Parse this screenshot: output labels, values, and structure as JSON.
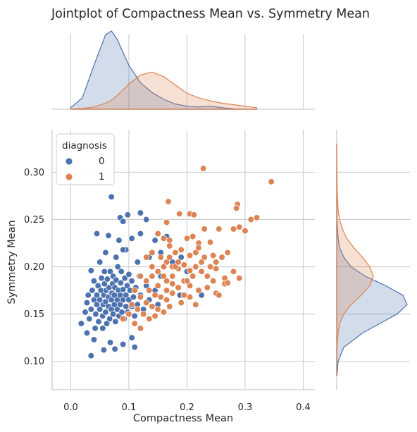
{
  "chart_data": {
    "type": "scatter",
    "title": "Jointplot of Compactness Mean vs. Symmetry Mean",
    "xlabel": "Compactness Mean",
    "ylabel": "Symmetry Mean",
    "xlim": [
      -0.032,
      0.42
    ],
    "ylim": [
      0.07,
      0.345
    ],
    "xticks": [
      0.0,
      0.1,
      0.2,
      0.3,
      0.4
    ],
    "xtick_labels": [
      "0.0",
      "0.1",
      "0.2",
      "0.3",
      "0.4"
    ],
    "yticks": [
      0.1,
      0.15,
      0.2,
      0.25,
      0.3
    ],
    "ytick_labels": [
      "0.10",
      "0.15",
      "0.20",
      "0.25",
      "0.30"
    ],
    "grid": true,
    "legend": {
      "title": "diagnosis",
      "placement": "top-left"
    },
    "colors": {
      "0": "#4c72b0",
      "1": "#dd8452"
    },
    "series": [
      {
        "name": "0",
        "color": "#4c72b0",
        "points": [
          [
            0.035,
            0.106
          ],
          [
            0.04,
            0.123
          ],
          [
            0.057,
            0.112
          ],
          [
            0.068,
            0.12
          ],
          [
            0.076,
            0.113
          ],
          [
            0.09,
            0.118
          ],
          [
            0.105,
            0.125
          ],
          [
            0.11,
            0.115
          ],
          [
            0.018,
            0.14
          ],
          [
            0.025,
            0.152
          ],
          [
            0.028,
            0.162
          ],
          [
            0.03,
            0.17
          ],
          [
            0.032,
            0.145
          ],
          [
            0.035,
            0.155
          ],
          [
            0.037,
            0.175
          ],
          [
            0.04,
            0.165
          ],
          [
            0.04,
            0.185
          ],
          [
            0.043,
            0.15
          ],
          [
            0.045,
            0.16
          ],
          [
            0.045,
            0.17
          ],
          [
            0.047,
            0.18
          ],
          [
            0.048,
            0.142
          ],
          [
            0.05,
            0.155
          ],
          [
            0.05,
            0.165
          ],
          [
            0.052,
            0.175
          ],
          [
            0.053,
            0.188
          ],
          [
            0.055,
            0.135
          ],
          [
            0.055,
            0.148
          ],
          [
            0.056,
            0.16
          ],
          [
            0.057,
            0.17
          ],
          [
            0.058,
            0.182
          ],
          [
            0.058,
            0.195
          ],
          [
            0.06,
            0.152
          ],
          [
            0.06,
            0.163
          ],
          [
            0.061,
            0.175
          ],
          [
            0.062,
            0.14
          ],
          [
            0.063,
            0.187
          ],
          [
            0.065,
            0.158
          ],
          [
            0.065,
            0.168
          ],
          [
            0.066,
            0.178
          ],
          [
            0.067,
            0.145
          ],
          [
            0.068,
            0.195
          ],
          [
            0.07,
            0.155
          ],
          [
            0.07,
            0.165
          ],
          [
            0.071,
            0.172
          ],
          [
            0.072,
            0.182
          ],
          [
            0.073,
            0.15
          ],
          [
            0.073,
            0.19
          ],
          [
            0.075,
            0.16
          ],
          [
            0.075,
            0.17
          ],
          [
            0.076,
            0.178
          ],
          [
            0.077,
            0.142
          ],
          [
            0.078,
            0.186
          ],
          [
            0.08,
            0.155
          ],
          [
            0.08,
            0.165
          ],
          [
            0.081,
            0.2
          ],
          [
            0.082,
            0.175
          ],
          [
            0.083,
            0.148
          ],
          [
            0.085,
            0.16
          ],
          [
            0.085,
            0.17
          ],
          [
            0.086,
            0.183
          ],
          [
            0.087,
            0.195
          ],
          [
            0.088,
            0.152
          ],
          [
            0.09,
            0.165
          ],
          [
            0.09,
            0.176
          ],
          [
            0.092,
            0.145
          ],
          [
            0.093,
            0.188
          ],
          [
            0.095,
            0.158
          ],
          [
            0.095,
            0.17
          ],
          [
            0.097,
            0.18
          ],
          [
            0.098,
            0.152
          ],
          [
            0.1,
            0.165
          ],
          [
            0.1,
            0.192
          ],
          [
            0.102,
            0.175
          ],
          [
            0.105,
            0.158
          ],
          [
            0.105,
            0.185
          ],
          [
            0.108,
            0.168
          ],
          [
            0.11,
            0.148
          ],
          [
            0.112,
            0.178
          ],
          [
            0.115,
            0.16
          ],
          [
            0.118,
            0.19
          ],
          [
            0.12,
            0.17
          ],
          [
            0.125,
            0.155
          ],
          [
            0.13,
            0.18
          ],
          [
            0.135,
            0.165
          ],
          [
            0.14,
            0.2
          ],
          [
            0.145,
            0.175
          ],
          [
            0.15,
            0.16
          ],
          [
            0.155,
            0.19
          ],
          [
            0.085,
            0.252
          ],
          [
            0.09,
            0.248
          ],
          [
            0.098,
            0.255
          ],
          [
            0.12,
            0.257
          ],
          [
            0.13,
            0.25
          ],
          [
            0.045,
            0.235
          ],
          [
            0.065,
            0.233
          ],
          [
            0.083,
            0.228
          ],
          [
            0.105,
            0.23
          ],
          [
            0.12,
            0.235
          ],
          [
            0.145,
            0.228
          ],
          [
            0.165,
            0.232
          ],
          [
            0.06,
            0.215
          ],
          [
            0.078,
            0.21
          ],
          [
            0.095,
            0.218
          ],
          [
            0.115,
            0.205
          ],
          [
            0.135,
            0.21
          ],
          [
            0.155,
            0.215
          ],
          [
            0.175,
            0.205
          ],
          [
            0.07,
            0.274
          ],
          [
            0.09,
            0.218
          ],
          [
            0.188,
            0.17
          ],
          [
            0.225,
            0.17
          ],
          [
            0.2,
            0.195
          ],
          [
            0.19,
            0.21
          ],
          [
            0.035,
            0.196
          ],
          [
            0.05,
            0.205
          ],
          [
            0.028,
            0.13
          ],
          [
            0.042,
            0.135
          ]
        ]
      },
      {
        "name": "1",
        "color": "#dd8452",
        "points": [
          [
            0.228,
            0.304
          ],
          [
            0.345,
            0.29
          ],
          [
            0.287,
            0.266
          ],
          [
            0.285,
            0.262
          ],
          [
            0.168,
            0.269
          ],
          [
            0.165,
            0.247
          ],
          [
            0.187,
            0.256
          ],
          [
            0.205,
            0.256
          ],
          [
            0.212,
            0.255
          ],
          [
            0.32,
            0.252
          ],
          [
            0.31,
            0.25
          ],
          [
            0.23,
            0.24
          ],
          [
            0.255,
            0.24
          ],
          [
            0.28,
            0.24
          ],
          [
            0.29,
            0.242
          ],
          [
            0.3,
            0.238
          ],
          [
            0.15,
            0.235
          ],
          [
            0.16,
            0.23
          ],
          [
            0.17,
            0.228
          ],
          [
            0.2,
            0.23
          ],
          [
            0.21,
            0.232
          ],
          [
            0.22,
            0.225
          ],
          [
            0.24,
            0.226
          ],
          [
            0.17,
            0.222
          ],
          [
            0.18,
            0.215
          ],
          [
            0.19,
            0.218
          ],
          [
            0.205,
            0.212
          ],
          [
            0.215,
            0.215
          ],
          [
            0.23,
            0.21
          ],
          [
            0.245,
            0.212
          ],
          [
            0.26,
            0.21
          ],
          [
            0.27,
            0.215
          ],
          [
            0.155,
            0.21
          ],
          [
            0.165,
            0.205
          ],
          [
            0.175,
            0.2
          ],
          [
            0.185,
            0.198
          ],
          [
            0.195,
            0.202
          ],
          [
            0.205,
            0.196
          ],
          [
            0.215,
            0.2
          ],
          [
            0.225,
            0.195
          ],
          [
            0.235,
            0.19
          ],
          [
            0.25,
            0.198
          ],
          [
            0.265,
            0.188
          ],
          [
            0.28,
            0.195
          ],
          [
            0.29,
            0.188
          ],
          [
            0.14,
            0.2
          ],
          [
            0.15,
            0.195
          ],
          [
            0.16,
            0.19
          ],
          [
            0.165,
            0.185
          ],
          [
            0.175,
            0.182
          ],
          [
            0.185,
            0.178
          ],
          [
            0.195,
            0.185
          ],
          [
            0.205,
            0.18
          ],
          [
            0.22,
            0.175
          ],
          [
            0.235,
            0.178
          ],
          [
            0.25,
            0.172
          ],
          [
            0.265,
            0.182
          ],
          [
            0.13,
            0.185
          ],
          [
            0.12,
            0.19
          ],
          [
            0.135,
            0.175
          ],
          [
            0.145,
            0.17
          ],
          [
            0.155,
            0.168
          ],
          [
            0.165,
            0.165
          ],
          [
            0.175,
            0.172
          ],
          [
            0.19,
            0.162
          ],
          [
            0.205,
            0.168
          ],
          [
            0.215,
            0.16
          ],
          [
            0.11,
            0.175
          ],
          [
            0.12,
            0.168
          ],
          [
            0.13,
            0.162
          ],
          [
            0.14,
            0.158
          ],
          [
            0.15,
            0.155
          ],
          [
            0.16,
            0.152
          ],
          [
            0.17,
            0.158
          ],
          [
            0.105,
            0.16
          ],
          [
            0.115,
            0.155
          ],
          [
            0.125,
            0.15
          ],
          [
            0.135,
            0.145
          ],
          [
            0.145,
            0.148
          ],
          [
            0.11,
            0.14
          ],
          [
            0.12,
            0.135
          ],
          [
            0.1,
            0.15
          ],
          [
            0.09,
            0.145
          ],
          [
            0.165,
            0.175
          ],
          [
            0.175,
            0.19
          ],
          [
            0.14,
            0.215
          ],
          [
            0.13,
            0.21
          ],
          [
            0.22,
            0.22
          ],
          [
            0.27,
            0.183
          ],
          [
            0.25,
            0.205
          ],
          [
            0.245,
            0.185
          ],
          [
            0.255,
            0.17
          ],
          [
            0.2,
            0.185
          ],
          [
            0.195,
            0.17
          ],
          [
            0.18,
            0.2
          ],
          [
            0.17,
            0.21
          ],
          [
            0.16,
            0.2
          ],
          [
            0.15,
            0.18
          ],
          [
            0.14,
            0.19
          ],
          [
            0.185,
            0.205
          ],
          [
            0.21,
            0.19
          ],
          [
            0.225,
            0.205
          ],
          [
            0.24,
            0.2
          ]
        ]
      }
    ],
    "marginal_x_kde": {
      "x": [
        0.0,
        0.02,
        0.04,
        0.06,
        0.07,
        0.08,
        0.1,
        0.12,
        0.14,
        0.16,
        0.18,
        0.2,
        0.22,
        0.24,
        0.26,
        0.28,
        0.3,
        0.32
      ],
      "density": [
        {
          "name": "0",
          "values": [
            0.2,
            1.5,
            5.8,
            9.8,
            10.3,
            9.2,
            5.8,
            3.5,
            2.2,
            1.3,
            0.7,
            0.4,
            0.3,
            0.4,
            0.2,
            0.05,
            0.0,
            0.0
          ]
        },
        {
          "name": "1",
          "values": [
            0.0,
            0.1,
            0.3,
            0.8,
            1.2,
            1.8,
            3.3,
            4.5,
            4.9,
            4.3,
            3.2,
            2.1,
            1.5,
            1.1,
            0.8,
            0.6,
            0.4,
            0.2
          ]
        }
      ]
    },
    "marginal_y_kde": {
      "y": [
        0.085,
        0.1,
        0.115,
        0.13,
        0.14,
        0.15,
        0.16,
        0.17,
        0.18,
        0.19,
        0.2,
        0.21,
        0.22,
        0.23,
        0.24,
        0.25,
        0.26,
        0.28,
        0.3,
        0.33
      ],
      "density": [
        {
          "name": "0",
          "values": [
            0.1,
            0.5,
            2.5,
            9.0,
            15.0,
            21.0,
            24.5,
            23.0,
            17.0,
            10.0,
            5.0,
            2.5,
            1.0,
            0.5,
            0.3,
            0.1,
            0.05,
            0.0,
            0.0,
            0.0
          ]
        },
        {
          "name": "1",
          "values": [
            0.0,
            0.0,
            0.1,
            0.5,
            1.0,
            2.5,
            5.0,
            8.5,
            11.5,
            12.8,
            11.5,
            9.0,
            6.0,
            3.5,
            2.0,
            1.0,
            0.5,
            0.2,
            0.1,
            0.0
          ]
        }
      ]
    }
  }
}
